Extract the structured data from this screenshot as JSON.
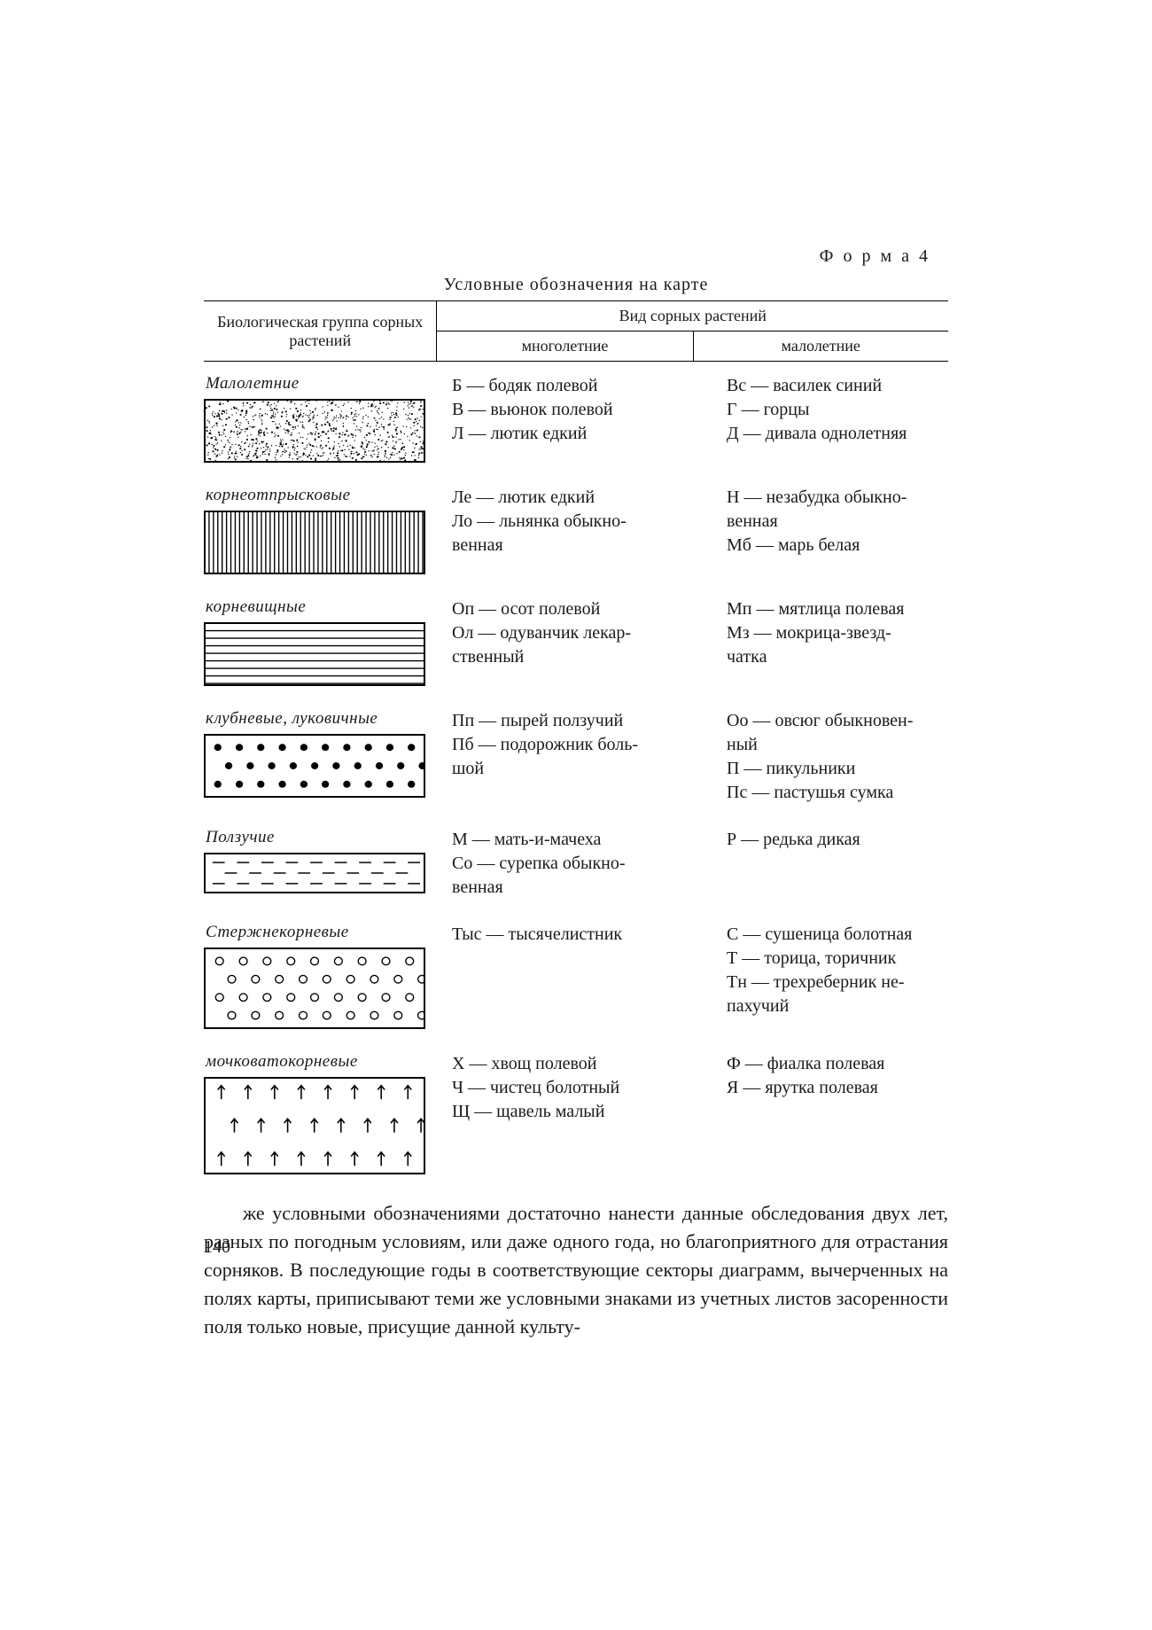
{
  "form_label": "Ф о р м а  4",
  "title": "Условные обозначения на карте",
  "header": {
    "col0": "Биологическая группа сорных растений",
    "col_span": "Вид сорных растений",
    "col1": "многолетние",
    "col2": "малолетние"
  },
  "colors": {
    "ink": "#1a1a1a",
    "bg": "#ffffff",
    "rule": "#000000"
  },
  "rows": [
    {
      "group": "Малолетние",
      "pattern": "noise",
      "col1": [
        "Б — бодяк полевой",
        "В — вьюнок полевой",
        "Л — лютик едкий"
      ],
      "col2": [
        "Вс — василек синий",
        "Г — горцы",
        "Д — дивала однолетняя"
      ]
    },
    {
      "group": "корнеотпрысковые",
      "pattern": "vlines",
      "col1": [
        "Ле — лютик едкий",
        "Ло — льнянка обыкно-",
        "венная"
      ],
      "col2": [
        "Н — незабудка обыкно-",
        "венная",
        "Мб — марь белая"
      ]
    },
    {
      "group": "корневищные",
      "pattern": "hlines",
      "col1": [
        "Оп — осот полевой",
        "Ол — одуванчик лекар-",
        "ственный"
      ],
      "col2": [
        "Мп — мятлица полевая",
        "Мз — мокрица-звезд-",
        "чатка"
      ]
    },
    {
      "group": "клубневые, луковичные",
      "pattern": "solid-dots",
      "col1": [
        "Пп — пырей ползучий",
        "Пб — подорожник боль-",
        "шой"
      ],
      "col2": [
        "Оо — овсюг обыкновен-",
        "ный",
        "П — пикульники",
        "Пс — пастушья сумка"
      ]
    },
    {
      "group": "Ползучие",
      "pattern": "dashes",
      "swatch_h": 46,
      "col1": [
        "М — мать-и-мачеха",
        "Со — сурепка обыкно-",
        "венная"
      ],
      "col2": [
        "Р — редька дикая"
      ]
    },
    {
      "group": "Стержнекорневые",
      "pattern": "open-dots",
      "swatch_h": 92,
      "col1": [
        "Тыс — тысячелистник"
      ],
      "col2": [
        "С — сушеница болотная",
        "Т — торица, торичник",
        "Тн — трехреберник не-",
        "пахучий"
      ]
    },
    {
      "group": "мочковатокорневые",
      "pattern": "arrows",
      "swatch_h": 110,
      "col1": [
        "Х — хвощ полевой",
        "Ч — чистец болотный",
        "Щ — щавель малый"
      ],
      "col2": [
        "Ф — фиалка полевая",
        "Я — ярутка полевая"
      ]
    }
  ],
  "paragraph": "же условными обозначениями достаточно нанести данные обследования двух лет, разных по погодным условиям, или даже одного года, но благоприятного для отрастания сорняков. В последующие годы в соответствующие секторы диаграмм, вычерченных на полях карты, приписывают теми же условными знаками из учетных листов засоренности поля только новые, присущие данной культу-",
  "page_number": "140"
}
